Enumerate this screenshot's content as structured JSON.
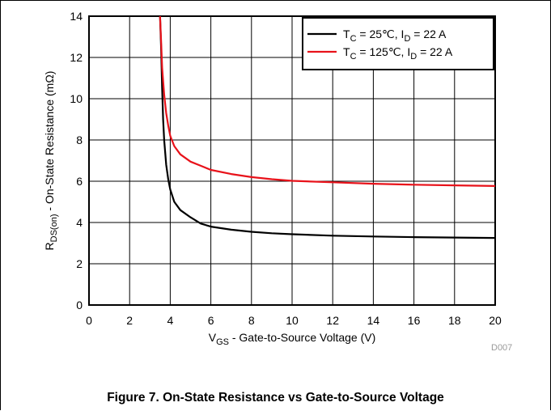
{
  "caption": "Figure 7. On-State Resistance vs Gate-to-Source Voltage",
  "figure_code": "D007",
  "chart_data": {
    "type": "line",
    "xlabel": {
      "main": "V",
      "sub": "GS",
      "rest": " - Gate-to-Source Voltage (V)"
    },
    "ylabel": {
      "main": "R",
      "sub": "DS(on)",
      "rest": " - On-State Resistance (mΩ)"
    },
    "xlim": [
      0,
      20
    ],
    "ylim": [
      0,
      14
    ],
    "xticks": [
      0,
      2,
      4,
      6,
      8,
      10,
      12,
      14,
      16,
      18,
      20
    ],
    "yticks": [
      0,
      2,
      4,
      6,
      8,
      10,
      12,
      14
    ],
    "grid": true,
    "legend_position": "top-right",
    "series": [
      {
        "name": "T_C = 25℃, I_D = 22 A",
        "legend": {
          "a": "T",
          "a_sub": "C",
          "b": " = 25℃, I",
          "b_sub": "D",
          "c": " = 22 A"
        },
        "color": "#000000",
        "points": [
          [
            3.5,
            14
          ],
          [
            3.55,
            12.5
          ],
          [
            3.6,
            10.5
          ],
          [
            3.65,
            9
          ],
          [
            3.7,
            8
          ],
          [
            3.8,
            6.8
          ],
          [
            3.9,
            6.1
          ],
          [
            4.0,
            5.6
          ],
          [
            4.2,
            5.0
          ],
          [
            4.5,
            4.6
          ],
          [
            5.0,
            4.25
          ],
          [
            5.5,
            3.95
          ],
          [
            6,
            3.8
          ],
          [
            7,
            3.65
          ],
          [
            8,
            3.55
          ],
          [
            9,
            3.48
          ],
          [
            10,
            3.43
          ],
          [
            12,
            3.36
          ],
          [
            14,
            3.32
          ],
          [
            16,
            3.29
          ],
          [
            18,
            3.27
          ],
          [
            20,
            3.25
          ]
        ]
      },
      {
        "name": "T_C = 125℃, I_D = 22 A",
        "legend": {
          "a": "T",
          "a_sub": "C",
          "b": " = 125℃, I",
          "b_sub": "D",
          "c": " = 22 A"
        },
        "color": "#e8121a",
        "points": [
          [
            3.5,
            14
          ],
          [
            3.55,
            12.8
          ],
          [
            3.6,
            11.5
          ],
          [
            3.7,
            10.2
          ],
          [
            3.8,
            9.3
          ],
          [
            3.9,
            8.7
          ],
          [
            4.0,
            8.2
          ],
          [
            4.2,
            7.7
          ],
          [
            4.5,
            7.3
          ],
          [
            5.0,
            6.95
          ],
          [
            5.5,
            6.75
          ],
          [
            6,
            6.55
          ],
          [
            7,
            6.35
          ],
          [
            8,
            6.2
          ],
          [
            9,
            6.1
          ],
          [
            10,
            6.02
          ],
          [
            12,
            5.95
          ],
          [
            14,
            5.88
          ],
          [
            16,
            5.83
          ],
          [
            18,
            5.8
          ],
          [
            20,
            5.77
          ]
        ]
      }
    ]
  }
}
